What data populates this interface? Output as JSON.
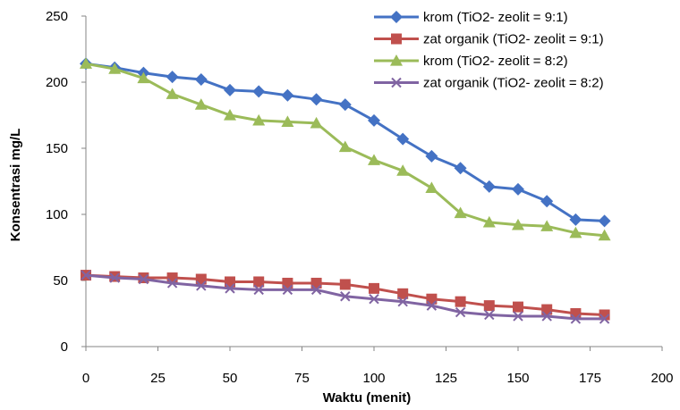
{
  "chart_data": {
    "type": "line",
    "title": "",
    "xlabel": "Waktu (menit)",
    "ylabel": "Konsentrasi mg/L",
    "xlim": [
      0,
      200
    ],
    "ylim": [
      0,
      250
    ],
    "x_ticks": [
      0,
      25,
      50,
      75,
      100,
      125,
      150,
      175,
      200
    ],
    "y_ticks": [
      0,
      50,
      100,
      150,
      200,
      250
    ],
    "x_tick_labels": [
      "0",
      "25",
      "50",
      "75",
      "100",
      "125",
      "150",
      "175",
      "200"
    ],
    "y_tick_labels": [
      "0",
      "50",
      "100",
      "150",
      "200",
      "250"
    ],
    "grid": false,
    "legend_position": "top-right",
    "x": [
      0,
      10,
      20,
      30,
      40,
      50,
      60,
      70,
      80,
      90,
      100,
      110,
      120,
      130,
      140,
      150,
      160,
      170,
      180
    ],
    "series": [
      {
        "name": "krom (TiO2- zeolit  = 9:1)",
        "color": "#4472C4",
        "marker": "diamond",
        "values": [
          214,
          211,
          207,
          204,
          202,
          194,
          193,
          190,
          187,
          183,
          171,
          157,
          144,
          135,
          121,
          119,
          110,
          96,
          95
        ]
      },
      {
        "name": "zat organik (TiO2- zeolit  = 9:1)",
        "color": "#C0504D",
        "marker": "square",
        "values": [
          54,
          53,
          52,
          52,
          51,
          49,
          49,
          48,
          48,
          47,
          44,
          40,
          36,
          34,
          31,
          30,
          28,
          25,
          24
        ]
      },
      {
        "name": "krom (TiO2- zeolit = 8:2)",
        "color": "#9BBB59",
        "marker": "triangle",
        "values": [
          214,
          210,
          203,
          191,
          183,
          175,
          171,
          170,
          169,
          151,
          141,
          133,
          120,
          101,
          94,
          92,
          91,
          86,
          84
        ]
      },
      {
        "name": "zat organik (TiO2- zeolit = 8:2)",
        "color": "#8064A2",
        "marker": "x",
        "values": [
          54,
          52,
          51,
          48,
          46,
          44,
          43,
          43,
          43,
          38,
          36,
          34,
          31,
          26,
          24,
          23,
          23,
          21,
          21
        ]
      }
    ]
  }
}
